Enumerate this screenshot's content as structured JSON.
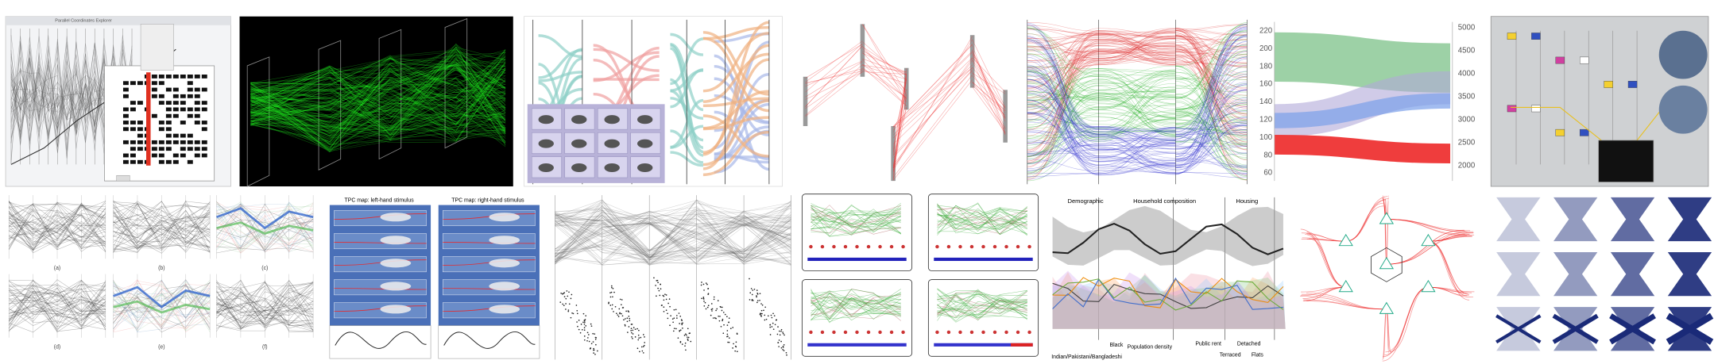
{
  "panels": {
    "explorer": {
      "title": "Parallel Coordinates Explorer"
    },
    "small_multiples": {
      "labels": [
        "(a)",
        "(b)",
        "(c)",
        "(d)",
        "(e)",
        "(f)"
      ]
    },
    "tpc": {
      "titles": [
        "TPC map: left-hand stimulus",
        "TPC map: right-hand stimulus"
      ]
    },
    "census": {
      "groups": [
        "Demographic",
        "Household composition",
        "Housing"
      ],
      "annotations": [
        "Black",
        "Population density",
        "Indian/Pakistani/Bangladeshi",
        "Public rent",
        "Detached",
        "Terraced",
        "Flats"
      ]
    },
    "ribbons": {
      "left_axis": [
        "220",
        "200",
        "180",
        "160",
        "140",
        "120",
        "100",
        "80",
        "60"
      ],
      "right_axis": [
        "5000",
        "4500",
        "4000",
        "3500",
        "3000",
        "2500",
        "2000"
      ]
    }
  }
}
